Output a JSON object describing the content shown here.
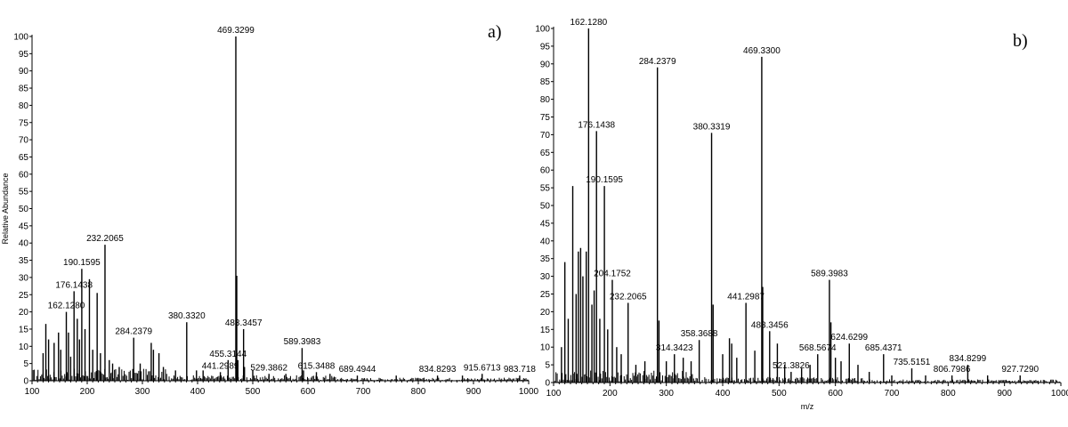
{
  "chart_data": [
    {
      "type": "bar",
      "panel_label": "a)",
      "xlabel": "",
      "ylabel": "Relative Abundance",
      "xlim": [
        100,
        1000
      ],
      "ylim": [
        0,
        100
      ],
      "x_ticks": [
        "100",
        "200",
        "300",
        "400",
        "500",
        "600",
        "700",
        "800",
        "900",
        "1000"
      ],
      "y_ticks": [
        "0",
        "5",
        "10",
        "15",
        "20",
        "25",
        "30",
        "35",
        "40",
        "45",
        "50",
        "55",
        "60",
        "65",
        "70",
        "75",
        "80",
        "85",
        "90",
        "95",
        "100"
      ],
      "peaks": [
        {
          "mz": 469.3299,
          "intensity": 100,
          "label": "469.3299"
        },
        {
          "mz": 232.2065,
          "intensity": 39.5,
          "label": "232.2065"
        },
        {
          "mz": 190.1595,
          "intensity": 32.5,
          "label": "190.1595"
        },
        {
          "mz": 176.1438,
          "intensity": 26,
          "label": "176.1438"
        },
        {
          "mz": 162.128,
          "intensity": 20,
          "label": "162.1280"
        },
        {
          "mz": 284.2379,
          "intensity": 12.5,
          "label": "284.2379"
        },
        {
          "mz": 380.332,
          "intensity": 17,
          "label": "380.3320"
        },
        {
          "mz": 483.3457,
          "intensity": 15,
          "label": "483.3457"
        },
        {
          "mz": 455.3144,
          "intensity": 6,
          "label": "455.3144"
        },
        {
          "mz": 441.2989,
          "intensity": 2.5,
          "label": "441.2989"
        },
        {
          "mz": 529.3862,
          "intensity": 2,
          "label": "529.3862"
        },
        {
          "mz": 589.3983,
          "intensity": 9.5,
          "label": "589.3983"
        },
        {
          "mz": 615.3488,
          "intensity": 2.5,
          "label": "615.3488"
        },
        {
          "mz": 689.4944,
          "intensity": 1.5,
          "label": "689.4944"
        },
        {
          "mz": 834.8293,
          "intensity": 1.5,
          "label": "834.8293"
        },
        {
          "mz": 915.6713,
          "intensity": 2,
          "label": "915.6713"
        },
        {
          "mz": 983.718,
          "intensity": 1.5,
          "label": "983.718"
        }
      ],
      "minor_peaks": [
        {
          "mz": 120,
          "intensity": 8
        },
        {
          "mz": 125,
          "intensity": 16.5
        },
        {
          "mz": 130,
          "intensity": 12
        },
        {
          "mz": 140,
          "intensity": 11
        },
        {
          "mz": 148,
          "intensity": 14
        },
        {
          "mz": 152,
          "intensity": 9
        },
        {
          "mz": 166,
          "intensity": 14
        },
        {
          "mz": 170,
          "intensity": 7
        },
        {
          "mz": 182,
          "intensity": 18
        },
        {
          "mz": 186,
          "intensity": 12
        },
        {
          "mz": 196,
          "intensity": 15
        },
        {
          "mz": 204,
          "intensity": 29.5
        },
        {
          "mz": 210,
          "intensity": 9
        },
        {
          "mz": 218,
          "intensity": 25.5
        },
        {
          "mz": 224,
          "intensity": 8
        },
        {
          "mz": 240,
          "intensity": 6
        },
        {
          "mz": 246,
          "intensity": 5
        },
        {
          "mz": 258,
          "intensity": 4
        },
        {
          "mz": 296,
          "intensity": 5
        },
        {
          "mz": 316,
          "intensity": 11
        },
        {
          "mz": 320,
          "intensity": 9
        },
        {
          "mz": 330,
          "intensity": 8
        },
        {
          "mz": 338,
          "intensity": 4
        },
        {
          "mz": 360,
          "intensity": 3
        },
        {
          "mz": 398,
          "intensity": 3
        },
        {
          "mz": 410,
          "intensity": 3
        },
        {
          "mz": 471,
          "intensity": 30.5
        },
        {
          "mz": 473,
          "intensity": 6
        },
        {
          "mz": 485,
          "intensity": 4
        },
        {
          "mz": 500,
          "intensity": 3
        },
        {
          "mz": 560,
          "intensity": 2
        },
        {
          "mz": 592,
          "intensity": 3
        },
        {
          "mz": 640,
          "intensity": 2
        },
        {
          "mz": 760,
          "intensity": 1.5
        },
        {
          "mz": 880,
          "intensity": 1.5
        }
      ]
    },
    {
      "type": "bar",
      "panel_label": "b)",
      "xlabel": "m/z",
      "ylabel": "",
      "xlim": [
        100,
        1000
      ],
      "ylim": [
        0,
        100
      ],
      "x_ticks": [
        "100",
        "200",
        "300",
        "400",
        "500",
        "600",
        "700",
        "800",
        "900",
        "1000"
      ],
      "y_ticks": [
        "0",
        "5",
        "10",
        "15",
        "20",
        "25",
        "30",
        "35",
        "40",
        "45",
        "50",
        "55",
        "60",
        "65",
        "70",
        "75",
        "80",
        "85",
        "90",
        "95",
        "100"
      ],
      "peaks": [
        {
          "mz": 162.128,
          "intensity": 100,
          "label": "162.1280"
        },
        {
          "mz": 469.33,
          "intensity": 92,
          "label": "469.3300"
        },
        {
          "mz": 284.2379,
          "intensity": 89,
          "label": "284.2379"
        },
        {
          "mz": 380.3319,
          "intensity": 70.5,
          "label": "380.3319"
        },
        {
          "mz": 176.1438,
          "intensity": 71,
          "label": "176.1438"
        },
        {
          "mz": 190.1595,
          "intensity": 55.5,
          "label": "190.1595"
        },
        {
          "mz": 204.1752,
          "intensity": 29,
          "label": "204.1752"
        },
        {
          "mz": 232.2065,
          "intensity": 22.5,
          "label": "232.2065"
        },
        {
          "mz": 314.3423,
          "intensity": 8,
          "label": "314.3423"
        },
        {
          "mz": 358.3688,
          "intensity": 12,
          "label": "358.3688"
        },
        {
          "mz": 441.2987,
          "intensity": 22.5,
          "label": "441.2987"
        },
        {
          "mz": 483.3456,
          "intensity": 14.5,
          "label": "483.3456"
        },
        {
          "mz": 521.3826,
          "intensity": 3,
          "label": "521.3826"
        },
        {
          "mz": 568.5674,
          "intensity": 8,
          "label": "568.5674"
        },
        {
          "mz": 589.3983,
          "intensity": 29,
          "label": "589.3983"
        },
        {
          "mz": 624.6299,
          "intensity": 11,
          "label": "624.6299"
        },
        {
          "mz": 685.4371,
          "intensity": 8,
          "label": "685.4371"
        },
        {
          "mz": 735.5151,
          "intensity": 4,
          "label": "735.5151"
        },
        {
          "mz": 806.7986,
          "intensity": 2,
          "label": "806.7986"
        },
        {
          "mz": 834.8299,
          "intensity": 5,
          "label": "834.8299"
        },
        {
          "mz": 927.729,
          "intensity": 2,
          "label": "927.7290"
        }
      ],
      "minor_peaks": [
        {
          "mz": 114,
          "intensity": 10
        },
        {
          "mz": 120,
          "intensity": 34
        },
        {
          "mz": 126,
          "intensity": 18
        },
        {
          "mz": 134,
          "intensity": 55.5
        },
        {
          "mz": 140,
          "intensity": 25
        },
        {
          "mz": 144,
          "intensity": 37
        },
        {
          "mz": 148,
          "intensity": 38
        },
        {
          "mz": 152,
          "intensity": 30
        },
        {
          "mz": 158,
          "intensity": 37
        },
        {
          "mz": 168,
          "intensity": 22
        },
        {
          "mz": 172,
          "intensity": 26
        },
        {
          "mz": 182,
          "intensity": 18
        },
        {
          "mz": 196,
          "intensity": 15
        },
        {
          "mz": 212,
          "intensity": 10
        },
        {
          "mz": 220,
          "intensity": 8
        },
        {
          "mz": 246,
          "intensity": 5
        },
        {
          "mz": 262,
          "intensity": 6
        },
        {
          "mz": 287,
          "intensity": 17.5
        },
        {
          "mz": 300,
          "intensity": 6
        },
        {
          "mz": 330,
          "intensity": 7
        },
        {
          "mz": 344,
          "intensity": 6
        },
        {
          "mz": 383,
          "intensity": 22
        },
        {
          "mz": 400,
          "intensity": 8
        },
        {
          "mz": 412,
          "intensity": 12.5
        },
        {
          "mz": 416,
          "intensity": 11
        },
        {
          "mz": 425,
          "intensity": 7
        },
        {
          "mz": 457,
          "intensity": 9
        },
        {
          "mz": 471,
          "intensity": 27
        },
        {
          "mz": 497,
          "intensity": 11
        },
        {
          "mz": 510,
          "intensity": 5
        },
        {
          "mz": 540,
          "intensity": 4
        },
        {
          "mz": 555,
          "intensity": 5
        },
        {
          "mz": 592,
          "intensity": 17
        },
        {
          "mz": 600,
          "intensity": 7
        },
        {
          "mz": 610,
          "intensity": 6
        },
        {
          "mz": 640,
          "intensity": 5
        },
        {
          "mz": 660,
          "intensity": 3
        },
        {
          "mz": 700,
          "intensity": 2
        },
        {
          "mz": 760,
          "intensity": 2
        },
        {
          "mz": 870,
          "intensity": 2
        }
      ]
    }
  ]
}
